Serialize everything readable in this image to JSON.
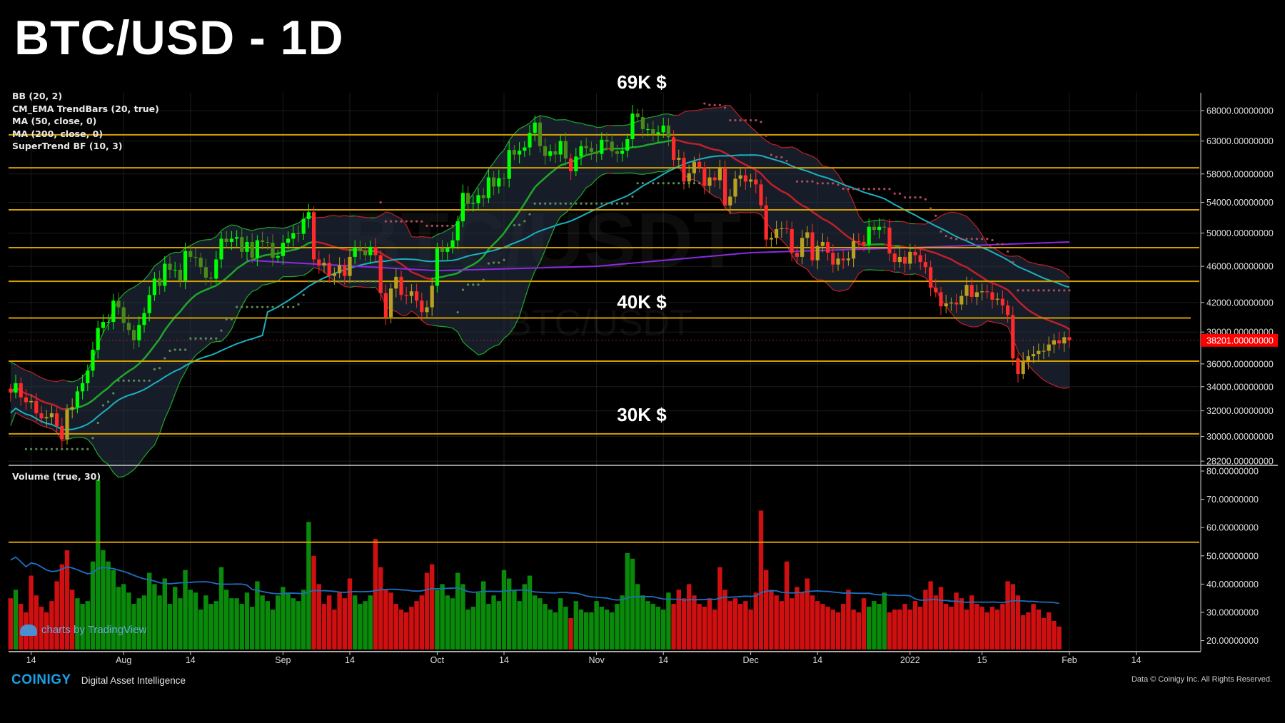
{
  "title": "BTC/USD - 1D",
  "legend": [
    "BB (20, 2)",
    "CM_EMA TrendBars (20, true)",
    "MA (50, close, 0)",
    "MA (200, close, 0)",
    "SuperTrend BF (10, 3)"
  ],
  "volume_legend": "Volume (true, 30)",
  "watermark": {
    "main": "BTC/USDT",
    "sub": "BTC/USDT"
  },
  "annotations": [
    "69K $",
    "40K $",
    "30K $"
  ],
  "last_price_label": "38201.00000000",
  "footer": {
    "logo": "COINIGY",
    "tagline": "Digital Asset Intelligence",
    "copyright": "Data © Coinigy Inc.  All Rights Reserved.",
    "tradingview": "charts by TradingView"
  },
  "colors": {
    "up": "#00ff00",
    "up_weak": "#4a8a1a",
    "down": "#ff2a2a",
    "level": "#d4a000",
    "ma50": "#1ab0c0",
    "ma200": "#8a2be2",
    "vol_ma": "#1e6fc0",
    "price_tag": "#ff0000"
  },
  "chart_data": [
    {
      "type": "candlestick",
      "scale": "log",
      "ylim": [
        28200,
        68000
      ],
      "xlim": [
        "2021-07-10",
        "2022-02-14"
      ],
      "y_ticks": [
        "68000.00000000",
        "63000.00000000",
        "58000.00000000",
        "54000.00000000",
        "50000.00000000",
        "46000.00000000",
        "42000.00000000",
        "39000.00000000",
        "36000.00000000",
        "34000.00000000",
        "32000.00000000",
        "30000.00000000",
        "28200.00000000"
      ],
      "x_ticks": [
        "14",
        "Aug",
        "14",
        "Sep",
        "14",
        "Oct",
        "14",
        "Nov",
        "14",
        "Dec",
        "14",
        "2022",
        "15",
        "Feb",
        "14"
      ],
      "first_date": "2021-07-10",
      "last_date": "2022-02-01",
      "closes_k": [
        33.5,
        34.3,
        33.1,
        32.7,
        32.8,
        31.8,
        31.4,
        31.5,
        31.8,
        30.8,
        29.8,
        32.1,
        32.3,
        33.6,
        34.3,
        35.4,
        37.3,
        39.4,
        40.0,
        40.0,
        42.2,
        41.5,
        39.9,
        39.2,
        38.2,
        39.7,
        40.9,
        42.8,
        44.6,
        43.8,
        46.3,
        45.6,
        45.6,
        44.4,
        47.8,
        47.1,
        47.0,
        45.9,
        44.7,
        44.6,
        46.8,
        49.3,
        48.9,
        49.3,
        49.5,
        47.7,
        48.9,
        47.0,
        49.1,
        48.9,
        48.8,
        47.0,
        47.2,
        48.8,
        49.3,
        50.0,
        49.9,
        51.8,
        52.7,
        46.8,
        46.1,
        46.4,
        44.9,
        45.2,
        46.1,
        44.9,
        47.1,
        48.2,
        47.8,
        47.3,
        48.3,
        47.3,
        43.0,
        40.5,
        43.5,
        44.8,
        42.8,
        42.7,
        43.2,
        42.2,
        41.0,
        41.5,
        43.8,
        48.1,
        47.7,
        48.2,
        49.1,
        51.5,
        55.3,
        53.8,
        53.9,
        55.0,
        54.6,
        57.5,
        56.2,
        57.4,
        57.3,
        61.6,
        60.9,
        61.5,
        62.0,
        64.3,
        66.0,
        62.2,
        60.7,
        61.4,
        60.9,
        63.0,
        60.3,
        58.4,
        60.6,
        62.2,
        61.9,
        61.3,
        61.0,
        63.2,
        62.9,
        61.4,
        61.0,
        61.5,
        63.3,
        67.5,
        66.9,
        64.9,
        64.9,
        64.1,
        64.4,
        65.5,
        63.6,
        60.1,
        60.4,
        56.9,
        58.1,
        59.8,
        59.0,
        56.3,
        57.5,
        57.1,
        58.9,
        53.6,
        54.8,
        57.3,
        57.8,
        56.9,
        57.2,
        56.5,
        53.6,
        49.2,
        49.4,
        50.5,
        50.6,
        50.5,
        47.6,
        47.1,
        49.4,
        50.1,
        46.7,
        48.4,
        48.9,
        47.6,
        46.2,
        46.9,
        46.7,
        46.9,
        49.0,
        48.9,
        48.6,
        50.8,
        50.4,
        50.8,
        50.7,
        47.5,
        46.5,
        47.1,
        46.3,
        47.7,
        47.3,
        46.5,
        45.9,
        43.6,
        43.1,
        41.6,
        41.9,
        42.0,
        41.8,
        42.7,
        43.9,
        42.6,
        43.1,
        43.2,
        43.1,
        42.3,
        42.4,
        41.7,
        40.7,
        36.5,
        35.1,
        36.3,
        36.7,
        36.9,
        37.2,
        37.2,
        37.8,
        38.2,
        37.9,
        38.5,
        38.201
      ],
      "ma200_k": [
        [
          "2021-08-25",
          46.7
        ],
        [
          "2021-10-01",
          45.5
        ],
        [
          "2021-11-01",
          46.0
        ],
        [
          "2021-12-01",
          47.6
        ],
        [
          "2022-01-01",
          48.2
        ],
        [
          "2022-02-01",
          48.9
        ]
      ],
      "levels": [
        64000,
        58900,
        53000,
        48200,
        44300,
        40400,
        36250,
        30200
      ],
      "last_price": 38201
    },
    {
      "type": "bar",
      "title": "Volume (true, 30)",
      "ylim": [
        20,
        80
      ],
      "y_ticks": [
        "80.00000000",
        "70.00000000",
        "60.00000000",
        "50.00000000",
        "40.00000000",
        "30.00000000",
        "20.00000000"
      ],
      "levels": [
        54.8
      ],
      "volumes": [
        35,
        38,
        33,
        30,
        43,
        36,
        32,
        30,
        34,
        41,
        47,
        52,
        38,
        35,
        33,
        34,
        48,
        77,
        52,
        48,
        45,
        39,
        40,
        37,
        33,
        35,
        36,
        44,
        40,
        36,
        42,
        33,
        39,
        35,
        45,
        38,
        37,
        31,
        36,
        33,
        34,
        46,
        38,
        35,
        35,
        33,
        37,
        32,
        41,
        36,
        34,
        31,
        36,
        39,
        37,
        35,
        34,
        38,
        62,
        50,
        40,
        33,
        36,
        31,
        37,
        35,
        42,
        36,
        33,
        34,
        36,
        56,
        46,
        38,
        37,
        33,
        31,
        30,
        32,
        34,
        36,
        44,
        47,
        38,
        40,
        36,
        35,
        44,
        40,
        31,
        32,
        37,
        41,
        33,
        36,
        34,
        45,
        42,
        38,
        34,
        40,
        43,
        36,
        35,
        33,
        31,
        30,
        35,
        32,
        28,
        34,
        31,
        30,
        30,
        34,
        32,
        31,
        30,
        33,
        36,
        51,
        49,
        40,
        36,
        34,
        33,
        32,
        31,
        37,
        33,
        38,
        35,
        40,
        36,
        33,
        32,
        35,
        31,
        46,
        38,
        34,
        35,
        33,
        34,
        31,
        37,
        66,
        45,
        38,
        36,
        34,
        48,
        35,
        39,
        37,
        42,
        36,
        34,
        33,
        32,
        31,
        30,
        33,
        38,
        31,
        30,
        35,
        32,
        34,
        33,
        37,
        30,
        31,
        31,
        33,
        31,
        34,
        32,
        38,
        41,
        36,
        39,
        33,
        32,
        37,
        35,
        31,
        36,
        33,
        32,
        30,
        32,
        31,
        33,
        41,
        40,
        36,
        29,
        30,
        33,
        31,
        28,
        30,
        27,
        25
      ]
    }
  ]
}
